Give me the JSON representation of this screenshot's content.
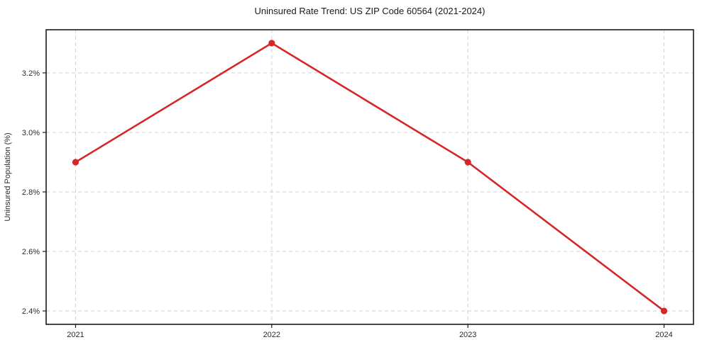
{
  "chart_data": {
    "type": "line",
    "title": "Uninsured Rate Trend: US ZIP Code 60564 (2021-2024)",
    "xlabel": "",
    "ylabel": "Uninsured Population (%)",
    "x": [
      2021,
      2022,
      2023,
      2024
    ],
    "series": [
      {
        "name": "Uninsured Population (%)",
        "values": [
          2.9,
          3.3,
          2.9,
          2.4
        ]
      }
    ],
    "x_tick_labels": [
      "2021",
      "2022",
      "2023",
      "2024"
    ],
    "y_ticks": [
      2.4,
      2.6,
      2.8,
      3.0,
      3.2
    ],
    "y_tick_labels": [
      "2.4%",
      "2.6%",
      "2.8%",
      "3.0%",
      "3.2%"
    ],
    "xlim": [
      2020.85,
      2024.15
    ],
    "ylim": [
      2.355,
      3.345
    ],
    "grid": true,
    "grid_style": "dashed",
    "legend_position": "none",
    "line_color": "#d62728",
    "marker": "circle",
    "grid_color": "#d0d0d0",
    "spine_color": "#1a1a1a"
  }
}
